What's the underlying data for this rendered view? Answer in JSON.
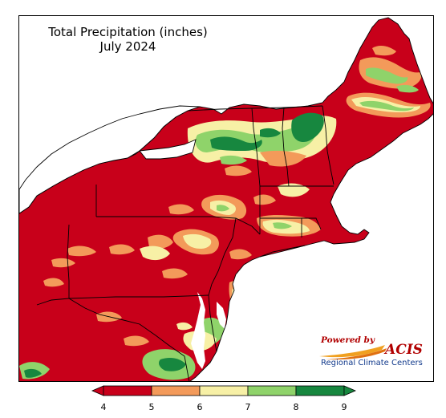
{
  "title": {
    "line1": "Total Precipitation (inches)",
    "line2": "July 2024"
  },
  "logo": {
    "powered_by": "Powered by",
    "name": "ACIS",
    "subtitle": "Regional Climate Centers"
  },
  "legend": {
    "ticks": [
      "4",
      "5",
      "6",
      "7",
      "8",
      "9"
    ],
    "bins": [
      {
        "from": 4,
        "to": 5,
        "color": "#c8001a"
      },
      {
        "from": 5,
        "to": 6,
        "color": "#f39a5a"
      },
      {
        "from": 6,
        "to": 7,
        "color": "#f7f0a6"
      },
      {
        "from": 7,
        "to": 8,
        "color": "#8fd36a"
      },
      {
        "from": 8,
        "to": 9,
        "color": "#17873f"
      }
    ],
    "under_color": "#c8001a",
    "over_color": "#17873f"
  },
  "map_colors": {
    "dry": "#c8001a",
    "orange": "#f39a5a",
    "yellow": "#f7f0a6",
    "light_green": "#8fd36a",
    "dark_green": "#17873f",
    "water": "#ffffff"
  }
}
